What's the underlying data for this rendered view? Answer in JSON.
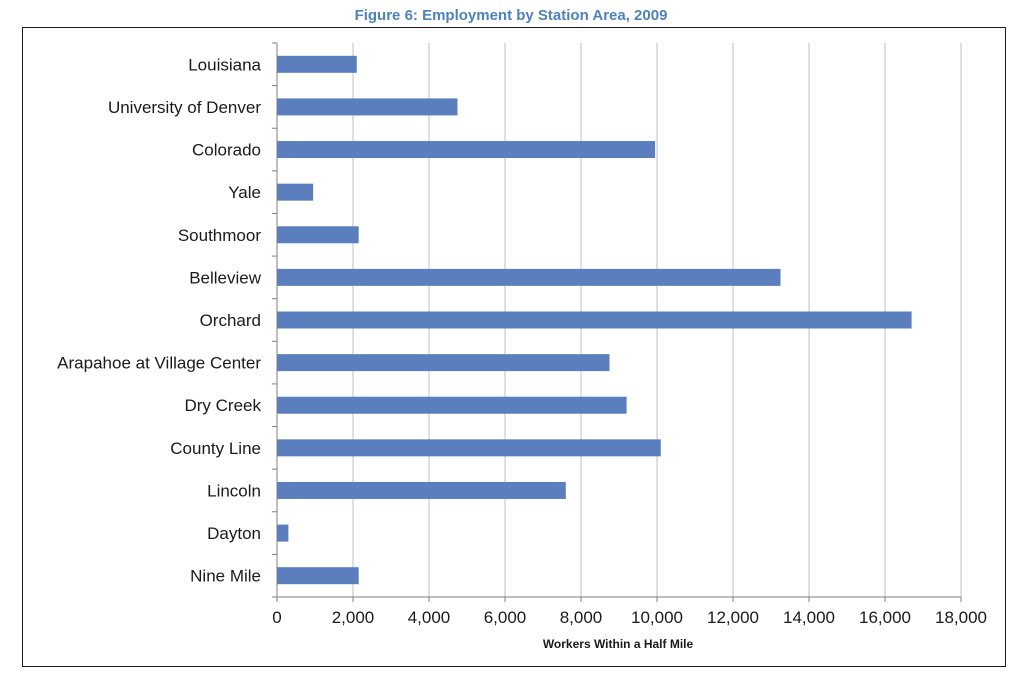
{
  "chart_data": {
    "type": "bar",
    "orientation": "horizontal",
    "title": "Figure 6: Employment by Station Area, 2009",
    "xlabel": "Workers Within a Half Mile",
    "ylabel": "",
    "categories": [
      "Louisiana",
      "University of Denver",
      "Colorado",
      "Yale",
      "Southmoor",
      "Belleview",
      "Orchard",
      "Arapahoe at Village Center",
      "Dry Creek",
      "County Line",
      "Lincoln",
      "Dayton",
      "Nine Mile"
    ],
    "values": [
      2100,
      4750,
      9950,
      950,
      2150,
      13250,
      16700,
      8750,
      9200,
      10100,
      7600,
      300,
      2150
    ],
    "xlim": [
      0,
      18000
    ],
    "xticks": [
      "0",
      "2,000",
      "4,000",
      "6,000",
      "8,000",
      "10,000",
      "12,000",
      "14,000",
      "16,000",
      "18,000"
    ],
    "grid": true,
    "legend": "none",
    "bar_color": "#5b7fbe"
  }
}
